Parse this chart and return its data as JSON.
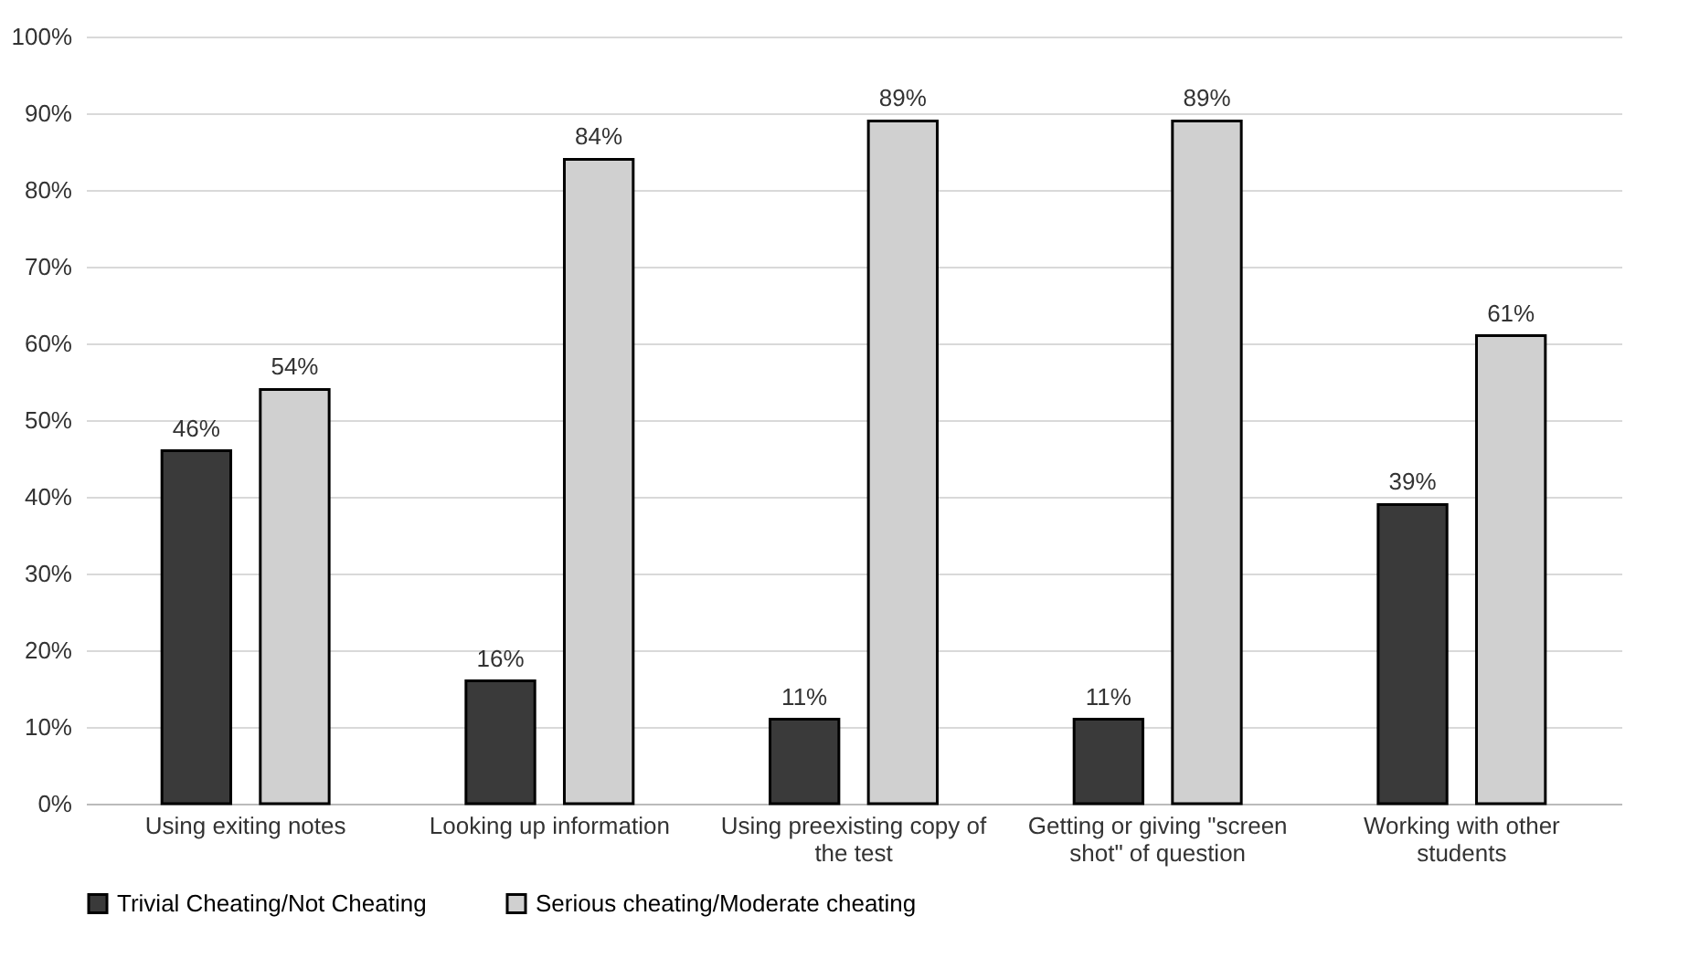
{
  "chart_data": {
    "type": "bar",
    "categories": [
      "Using exiting notes",
      "Looking up information",
      "Using preexisting copy of the test",
      "Getting or giving \"screen shot\" of question",
      "Working with other students"
    ],
    "series": [
      {
        "name": "Trivial Cheating/Not Cheating",
        "color": "#3a3a3a",
        "values": [
          46,
          16,
          11,
          11,
          39
        ],
        "value_labels": [
          "46%",
          "16%",
          "11%",
          "11%",
          "39%"
        ]
      },
      {
        "name": "Serious cheating/Moderate cheating",
        "color": "#d0d0d0",
        "values": [
          54,
          84,
          89,
          89,
          61
        ],
        "value_labels": [
          "54%",
          "84%",
          "89%",
          "89%",
          "61%"
        ]
      }
    ],
    "ylim": [
      0,
      100
    ],
    "yticks": [
      {
        "value": 0,
        "label": "0%"
      },
      {
        "value": 10,
        "label": "10%"
      },
      {
        "value": 20,
        "label": "20%"
      },
      {
        "value": 30,
        "label": "30%"
      },
      {
        "value": 40,
        "label": "40%"
      },
      {
        "value": 50,
        "label": "50%"
      },
      {
        "value": 60,
        "label": "60%"
      },
      {
        "value": 70,
        "label": "70%"
      },
      {
        "value": 80,
        "label": "80%"
      },
      {
        "value": 90,
        "label": "90%"
      },
      {
        "value": 100,
        "label": "100%"
      }
    ],
    "grid": "y",
    "legend": "bottom"
  }
}
